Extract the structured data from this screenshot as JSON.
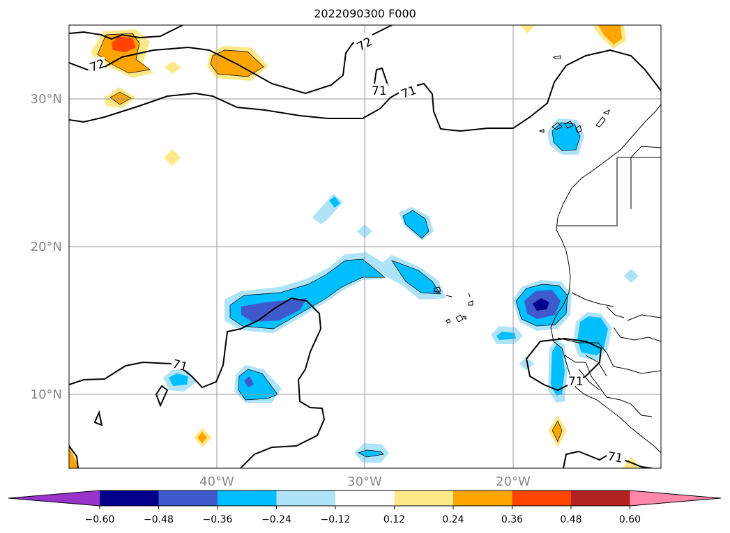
{
  "title": "2022090300 F000",
  "map": {
    "lat_labels": [
      "30°N",
      "20°N",
      "10°N"
    ],
    "lon_labels": [
      "40°W",
      "30°W",
      "20°W"
    ],
    "contour_labels": [
      "72",
      "72",
      "71",
      "71",
      "71",
      "71",
      "71"
    ],
    "contour_levels": [
      71,
      72
    ],
    "extent": {
      "lon": [
        -50,
        -10
      ],
      "lat": [
        5,
        35
      ]
    }
  },
  "colorbar": {
    "ticks": [
      "−0.60",
      "−0.48",
      "−0.36",
      "−0.24",
      "−0.12",
      "0.12",
      "0.24",
      "0.36",
      "0.48",
      "0.60"
    ],
    "colors": [
      "#9933cc",
      "#00008b",
      "#3f5acc",
      "#00bfff",
      "#aee3f8",
      "#ffffff",
      "#fde98a",
      "#ffa500",
      "#ff4500",
      "#b22222",
      "#ff88aa"
    ],
    "extend": "both"
  }
}
